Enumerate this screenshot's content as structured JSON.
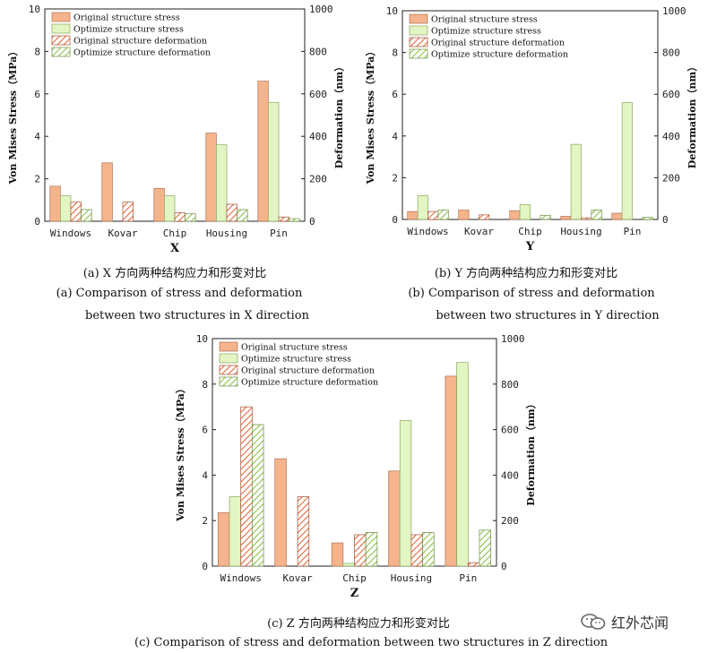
{
  "colors": {
    "original_stress": "#f5b48c",
    "optimize_stress": "#e3f5c2",
    "original_deformation_hatch": "#e06a3c",
    "optimize_deformation_hatch": "#8fbf4a",
    "frame": "#222222"
  },
  "legend_labels": [
    "Original structure stress",
    "Optimize structure stress",
    "Original structure deformation",
    "Optimize structure deformation"
  ],
  "captions": {
    "a_cn": "(a) X 方向两种结构应力和形变对比",
    "a_en_1": "(a) Comparison of stress and deformation",
    "a_en_2": "between two structures in X direction",
    "b_cn": "(b) Y 方向两种结构应力和形变对比",
    "b_en_1": "(b) Comparison of stress and deformation",
    "b_en_2": "between two structures in Y direction",
    "c_cn": "(c) Z 方向两种结构应力和形变对比",
    "c_en": "(c) Comparison of stress and deformation between two structures in Z direction"
  },
  "watermark": {
    "text": "红外芯闻",
    "icon": "wechat-icon"
  },
  "chart_data": [
    {
      "type": "bar",
      "xlabel": "X",
      "ylabel": "Von Mises Stress（MPa）",
      "ylabel_right": "Deformation（nm）",
      "ylim": [
        0,
        10
      ],
      "ylim_right": [
        0,
        1000
      ],
      "yticks": [
        "0",
        "2",
        "4",
        "6",
        "8",
        "10"
      ],
      "yticks_right": [
        "0",
        "200",
        "400",
        "600",
        "800",
        "1000"
      ],
      "categories": [
        "Windows",
        "Kovar",
        "Chip",
        "Housing",
        "Pin"
      ],
      "legend": "top-left",
      "series": [
        {
          "name": "Original structure stress",
          "axis": "left",
          "values": [
            1.65,
            2.75,
            1.55,
            4.15,
            6.6
          ]
        },
        {
          "name": "Optimize structure stress",
          "axis": "left",
          "values": [
            1.2,
            0,
            1.2,
            3.6,
            5.6
          ]
        },
        {
          "name": "Original structure deformation",
          "axis": "right",
          "values": [
            90,
            90,
            40,
            80,
            20
          ]
        },
        {
          "name": "Optimize structure deformation",
          "axis": "right",
          "values": [
            55,
            0,
            35,
            55,
            12
          ]
        }
      ]
    },
    {
      "type": "bar",
      "xlabel": "Y",
      "ylabel": "Von Mises Stress（MPa）",
      "ylabel_right": "Deformation（nm）",
      "ylim": [
        0,
        10
      ],
      "ylim_right": [
        0,
        1000
      ],
      "yticks": [
        "0",
        "2",
        "4",
        "6",
        "8",
        "10"
      ],
      "yticks_right": [
        "0",
        "200",
        "400",
        "600",
        "800",
        "1000"
      ],
      "categories": [
        "Windows",
        "Kovar",
        "Chip",
        "Housing",
        "Pin"
      ],
      "legend": "top-left",
      "series": [
        {
          "name": "Original structure stress",
          "axis": "left",
          "values": [
            0.38,
            0.45,
            0.42,
            0.15,
            0.3
          ]
        },
        {
          "name": "Optimize structure stress",
          "axis": "left",
          "values": [
            1.15,
            0,
            0.72,
            3.6,
            5.6
          ]
        },
        {
          "name": "Original structure deformation",
          "axis": "right",
          "values": [
            38,
            22,
            0,
            8,
            0
          ]
        },
        {
          "name": "Optimize structure deformation",
          "axis": "right",
          "values": [
            45,
            0,
            20,
            45,
            10
          ]
        }
      ]
    },
    {
      "type": "bar",
      "xlabel": "Z",
      "ylabel": "Von Mises Stress（MPa）",
      "ylabel_right": "Deformation（nm）",
      "ylim": [
        0,
        10
      ],
      "ylim_right": [
        0,
        1000
      ],
      "yticks": [
        "0",
        "2",
        "4",
        "6",
        "8",
        "10"
      ],
      "yticks_right": [
        "0",
        "200",
        "400",
        "600",
        "800",
        "1000"
      ],
      "categories": [
        "Windows",
        "Kovar",
        "Chip",
        "Housing",
        "Pin"
      ],
      "legend": "top-left",
      "series": [
        {
          "name": "Original structure stress",
          "axis": "left",
          "values": [
            2.35,
            4.72,
            1.02,
            4.18,
            8.35
          ]
        },
        {
          "name": "Optimize structure stress",
          "axis": "left",
          "values": [
            3.05,
            0,
            0.12,
            6.4,
            8.95
          ]
        },
        {
          "name": "Original structure deformation",
          "axis": "right",
          "values": [
            700,
            305,
            138,
            138,
            15
          ]
        },
        {
          "name": "Optimize structure deformation",
          "axis": "right",
          "values": [
            622,
            0,
            148,
            148,
            158
          ]
        }
      ]
    }
  ]
}
